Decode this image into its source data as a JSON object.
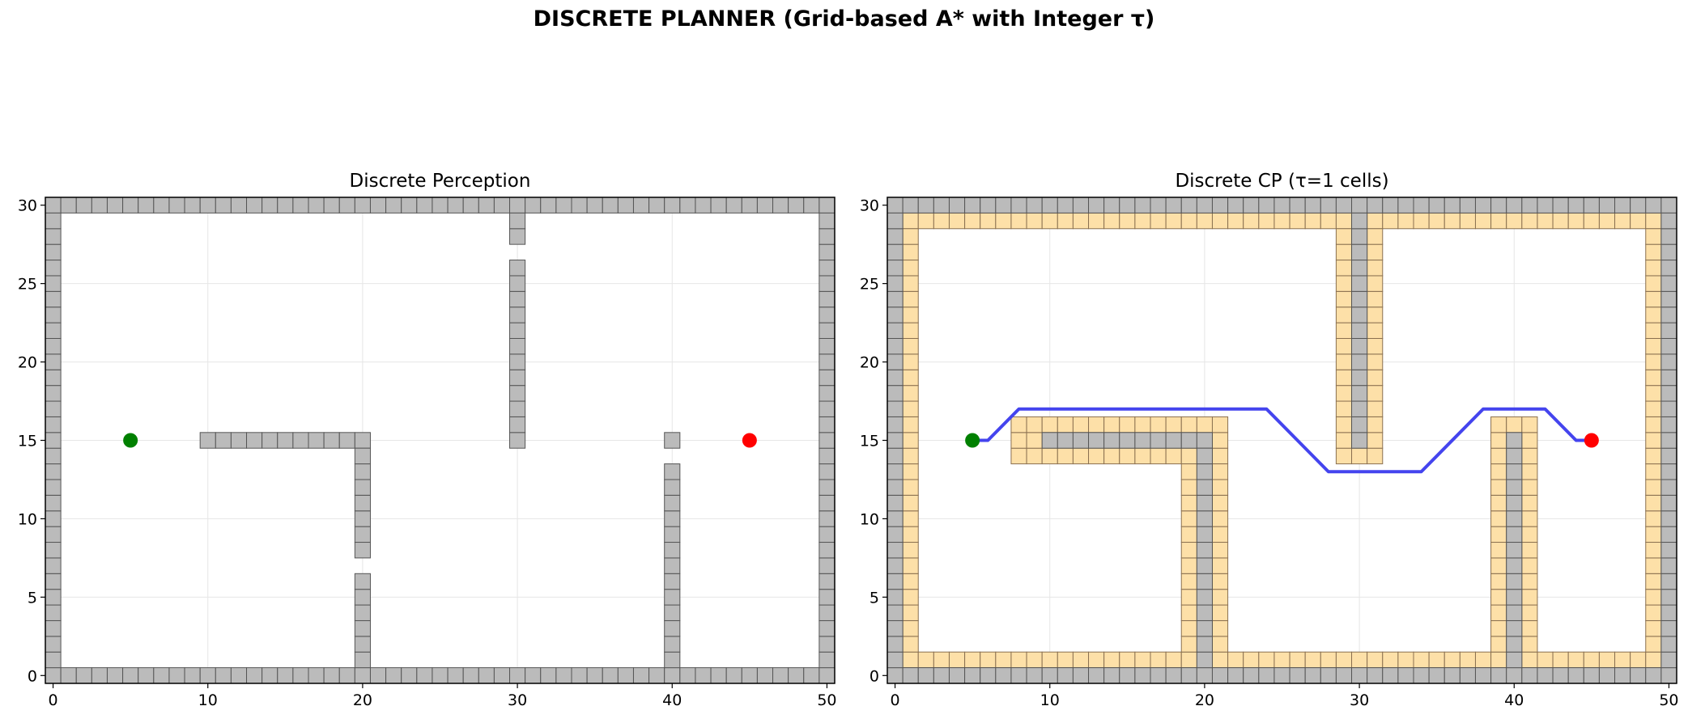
{
  "figure": {
    "suptitle": "DISCRETE PLANNER (Grid-based A* with Integer τ)"
  },
  "colors": {
    "obstacle_fill": "#bbbbbb",
    "obstacle_edge": "#555555",
    "inflation_fill": "#fde0a8",
    "inflation_edge": "#8a7050",
    "start": "#008000",
    "goal": "#ff0000",
    "path": "#4444ee",
    "grid": "#e6e6e6"
  },
  "chart_data": [
    {
      "type": "scatter",
      "title": "Discrete Perception",
      "xlim": [
        -0.5,
        50.5
      ],
      "ylim": [
        -0.5,
        30.5
      ],
      "xticks": [
        0,
        10,
        20,
        30,
        40,
        50
      ],
      "yticks": [
        0,
        5,
        10,
        15,
        20,
        25,
        30
      ],
      "grid": true,
      "obstacle_cells": {
        "boundary": {
          "x": [
            0,
            50
          ],
          "y": [
            0,
            30
          ]
        },
        "horizontal_runs": [
          {
            "y": 15,
            "x": [
              10,
              20
            ]
          }
        ],
        "vertical_runs": [
          {
            "x": 20,
            "y": [
              8,
              15
            ]
          },
          {
            "x": 20,
            "y": [
              0,
              6
            ]
          },
          {
            "x": 30,
            "y": [
              15,
              26
            ]
          },
          {
            "x": 30,
            "y": [
              28,
              30
            ]
          },
          {
            "x": 40,
            "y": [
              15,
              15
            ]
          },
          {
            "x": 40,
            "y": [
              0,
              13
            ]
          }
        ]
      },
      "start": {
        "x": 5,
        "y": 15
      },
      "goal": {
        "x": 45,
        "y": 15
      }
    },
    {
      "type": "scatter",
      "title": "Discrete CP (τ=1 cells)",
      "xlim": [
        -0.5,
        50.5
      ],
      "ylim": [
        -0.5,
        30.5
      ],
      "xticks": [
        0,
        10,
        20,
        30,
        40,
        50
      ],
      "yticks": [
        0,
        5,
        10,
        15,
        20,
        25,
        30
      ],
      "grid": true,
      "tau": 1,
      "obstacle_cells": {
        "boundary": {
          "x": [
            0,
            50
          ],
          "y": [
            0,
            30
          ]
        },
        "horizontal_runs": [
          {
            "y": 15,
            "x": [
              10,
              20
            ]
          }
        ],
        "vertical_runs": [
          {
            "x": 20,
            "y": [
              0,
              15
            ]
          },
          {
            "x": 30,
            "y": [
              15,
              30
            ]
          },
          {
            "x": 40,
            "y": [
              0,
              15
            ]
          }
        ]
      },
      "inflated_rects": [
        {
          "x": [
            1,
            49
          ],
          "y": [
            1,
            1
          ]
        },
        {
          "x": [
            1,
            49
          ],
          "y": [
            29,
            29
          ]
        },
        {
          "x": [
            1,
            1
          ],
          "y": [
            1,
            29
          ]
        },
        {
          "x": [
            49,
            49
          ],
          "y": [
            1,
            29
          ]
        },
        {
          "x": [
            8,
            21
          ],
          "y": [
            14,
            16
          ]
        },
        {
          "x": [
            19,
            21
          ],
          "y": [
            1,
            16
          ]
        },
        {
          "x": [
            29,
            31
          ],
          "y": [
            14,
            29
          ]
        },
        {
          "x": [
            39,
            41
          ],
          "y": [
            1,
            16
          ]
        }
      ],
      "path": {
        "x": [
          5,
          6,
          8,
          24,
          28,
          34,
          38,
          42,
          44,
          45
        ],
        "y": [
          15,
          15,
          17,
          17,
          13,
          13,
          17,
          17,
          15,
          15
        ]
      },
      "start": {
        "x": 5,
        "y": 15
      },
      "goal": {
        "x": 45,
        "y": 15
      }
    }
  ]
}
